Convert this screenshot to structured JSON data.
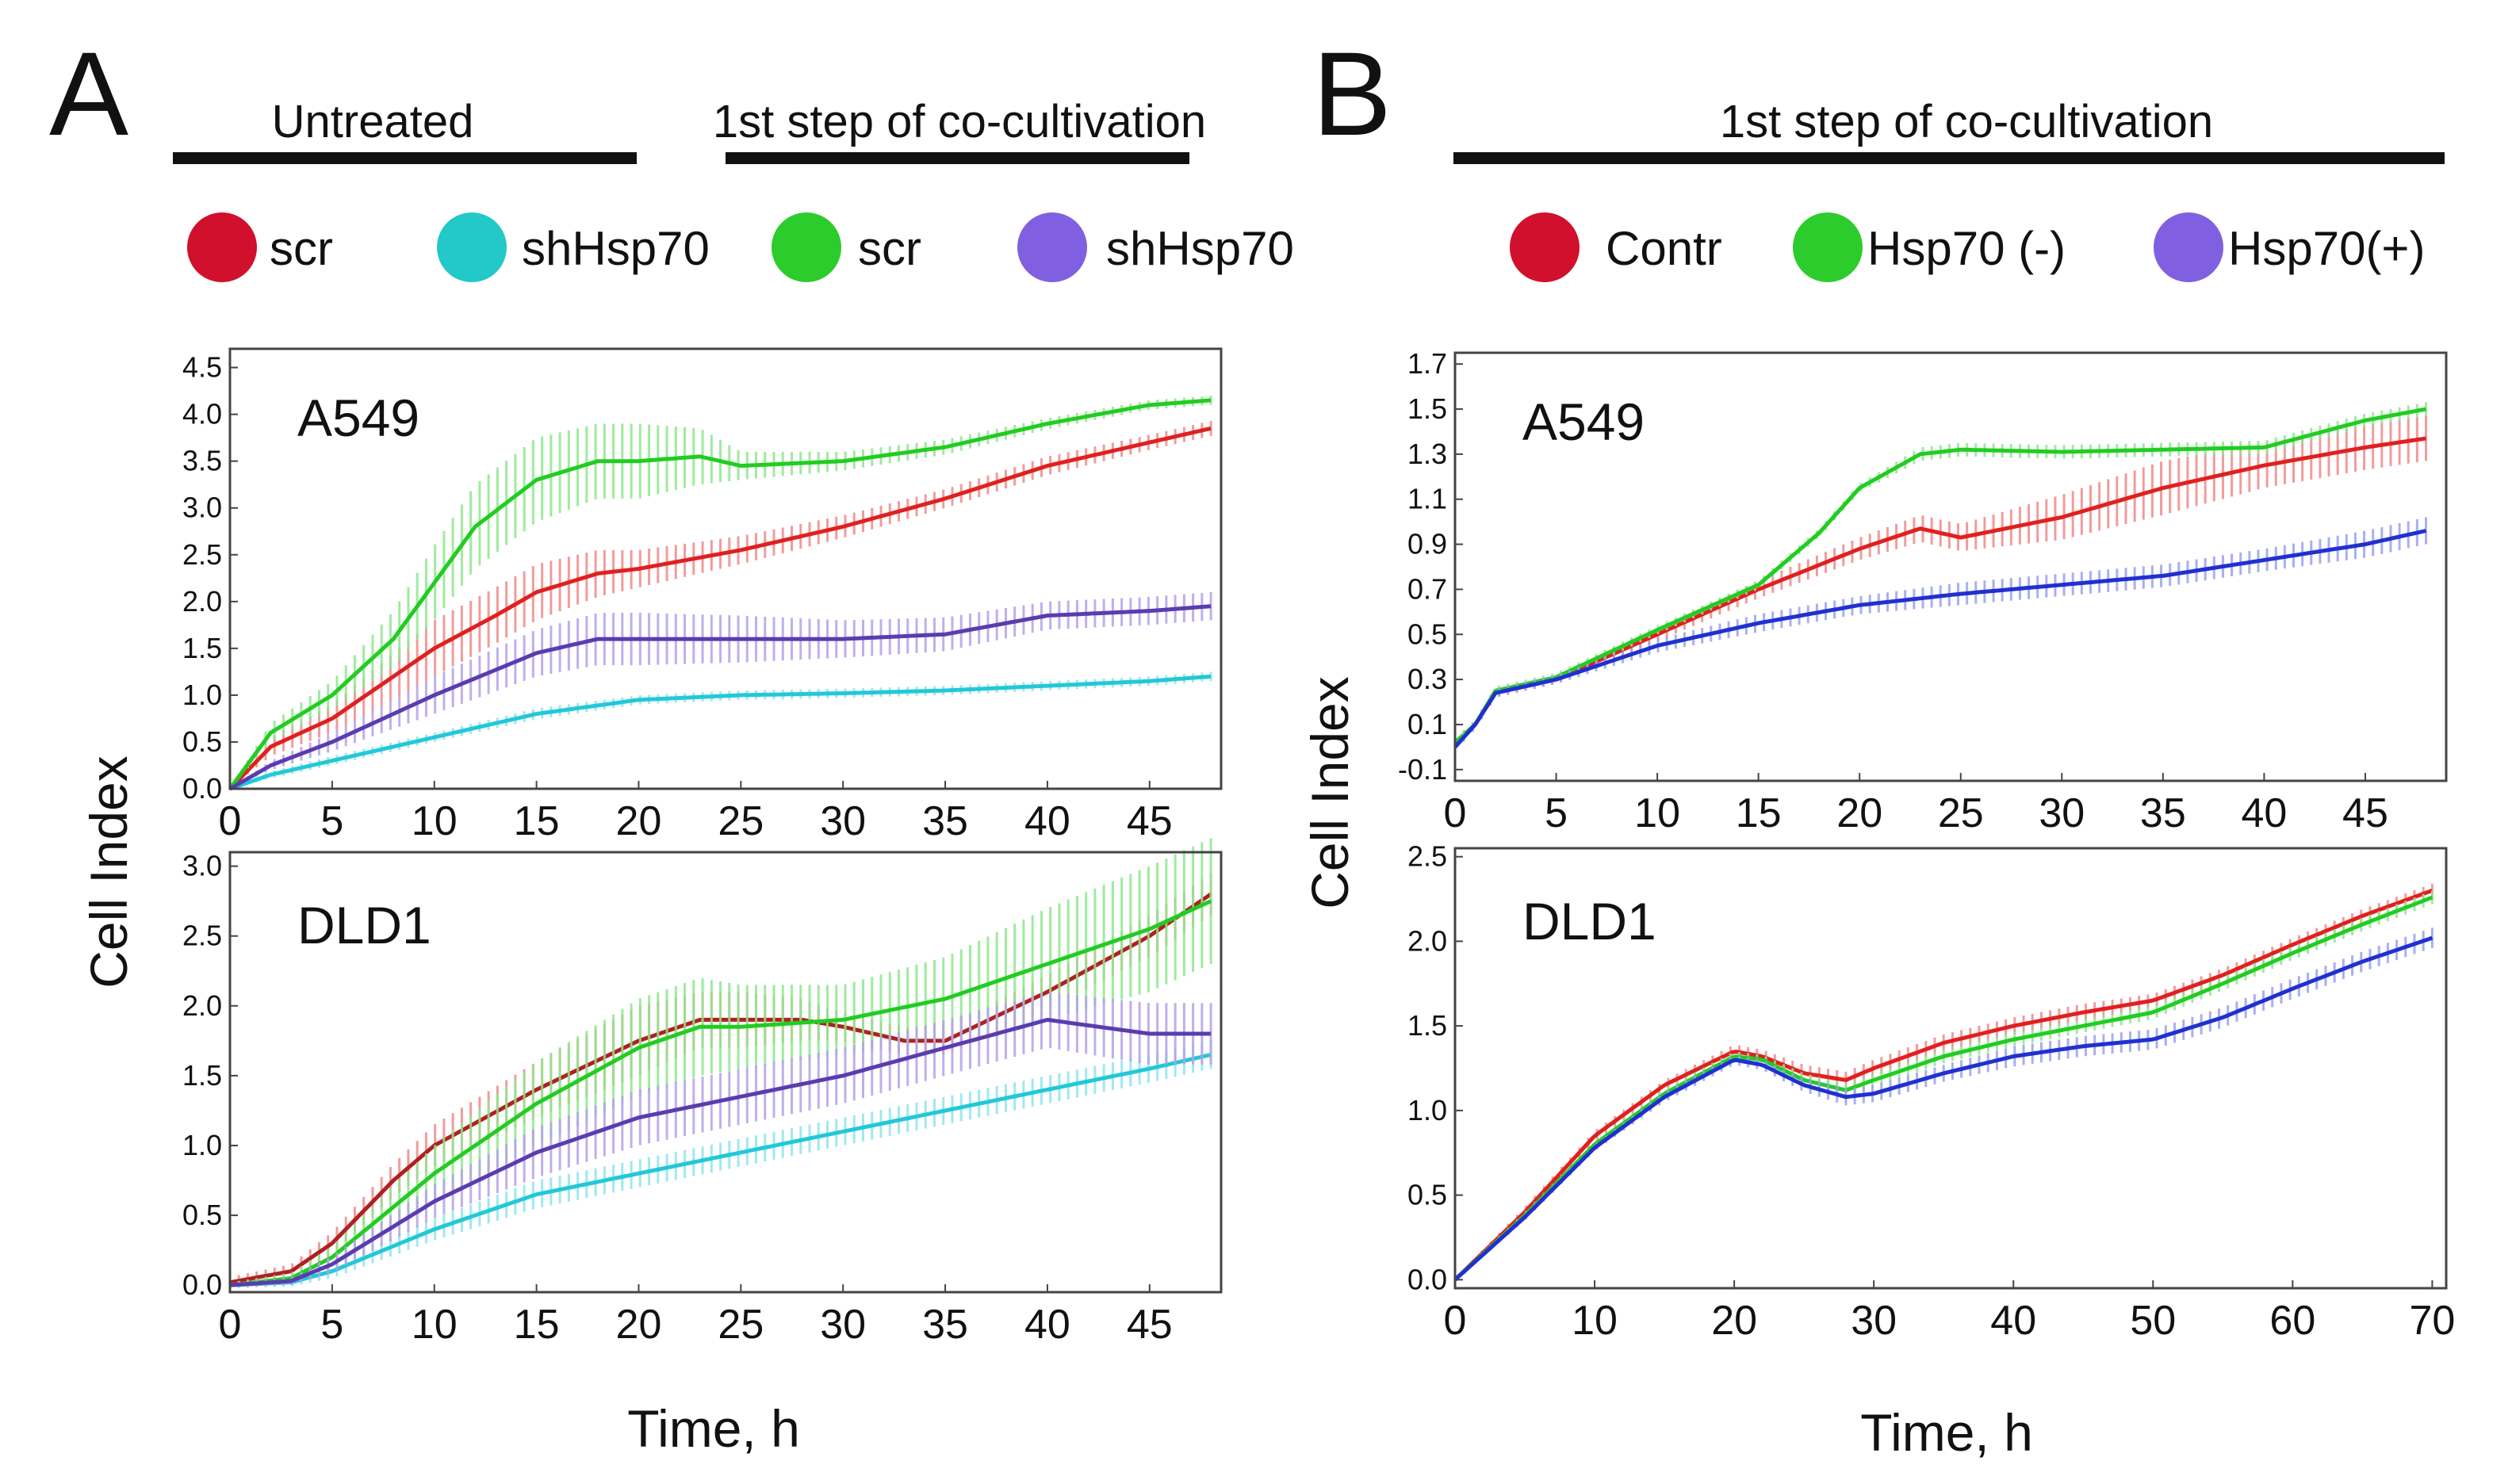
{
  "panels": [
    {
      "letter": "A",
      "headers": [
        "Untreated",
        "1st step of co-cultivation"
      ],
      "legend": [
        {
          "label": "scr",
          "color": "#d0102c"
        },
        {
          "label": "shHsp70",
          "color": "#23c8c8"
        },
        {
          "label": "scr",
          "color": "#2ccc2c"
        },
        {
          "label": "shHsp70",
          "color": "#8060e0"
        }
      ],
      "ylabel": "Cell Index",
      "xlabel": "Time, h"
    },
    {
      "letter": "B",
      "headers": [
        "1st step of co-cultivation"
      ],
      "legend": [
        {
          "label": "Contr",
          "color": "#d0102c"
        },
        {
          "label": "Hsp70 (-)",
          "color": "#2ccc2c"
        },
        {
          "label": "Hsp70(+)",
          "color": "#8060e0"
        }
      ],
      "ylabel": "Cell Index",
      "xlabel": "Time, h"
    }
  ],
  "chart_data": [
    {
      "panel": "A",
      "title": "A549",
      "type": "line",
      "xlabel": "Time, h",
      "ylabel": "Cell Index",
      "xlim": [
        0,
        48.5
      ],
      "ylim": [
        0,
        4.7
      ],
      "xticks": [
        0,
        5,
        10,
        15,
        20,
        25,
        30,
        35,
        40,
        45
      ],
      "yticks": [
        0.0,
        0.5,
        1.0,
        1.5,
        2.0,
        2.5,
        3.0,
        3.5,
        4.0,
        4.5
      ],
      "series": [
        {
          "name": "Untreated scr",
          "color": "#e02020",
          "band": "#f08a8a",
          "x": [
            0,
            2,
            5,
            8,
            10,
            13,
            15,
            18,
            20,
            25,
            30,
            35,
            40,
            45,
            48
          ],
          "y": [
            0,
            0.45,
            0.75,
            1.2,
            1.5,
            1.85,
            2.1,
            2.3,
            2.35,
            2.55,
            2.8,
            3.1,
            3.45,
            3.7,
            3.85
          ],
          "err": [
            0,
            0.1,
            0.15,
            0.25,
            0.3,
            0.3,
            0.3,
            0.25,
            0.2,
            0.15,
            0.12,
            0.1,
            0.1,
            0.08,
            0.08
          ]
        },
        {
          "name": "Untreated shHsp70",
          "color": "#22c8d8",
          "band": "#8ee6ee",
          "x": [
            0,
            2,
            5,
            10,
            15,
            20,
            25,
            30,
            35,
            40,
            45,
            48
          ],
          "y": [
            0,
            0.15,
            0.3,
            0.55,
            0.8,
            0.95,
            1.0,
            1.02,
            1.05,
            1.1,
            1.15,
            1.2
          ],
          "err": [
            0,
            0.04,
            0.05,
            0.05,
            0.06,
            0.05,
            0.05,
            0.05,
            0.05,
            0.05,
            0.05,
            0.05
          ]
        },
        {
          "name": "Co-cultivation scr",
          "color": "#22cc22",
          "band": "#8ee88e",
          "x": [
            0,
            2,
            5,
            8,
            10,
            12,
            15,
            18,
            20,
            23,
            25,
            30,
            35,
            40,
            45,
            48
          ],
          "y": [
            0,
            0.6,
            1.0,
            1.6,
            2.2,
            2.8,
            3.3,
            3.5,
            3.5,
            3.55,
            3.45,
            3.5,
            3.65,
            3.9,
            4.1,
            4.15
          ],
          "err": [
            0,
            0.1,
            0.15,
            0.3,
            0.4,
            0.45,
            0.45,
            0.4,
            0.4,
            0.3,
            0.15,
            0.1,
            0.08,
            0.06,
            0.05,
            0.05
          ]
        },
        {
          "name": "Co-cultivation shHsp70",
          "color": "#5a3cb0",
          "band": "#b4a2ea",
          "x": [
            0,
            2,
            5,
            10,
            15,
            18,
            20,
            25,
            30,
            35,
            40,
            45,
            48
          ],
          "y": [
            0,
            0.25,
            0.5,
            1.0,
            1.45,
            1.6,
            1.6,
            1.6,
            1.6,
            1.65,
            1.85,
            1.9,
            1.95
          ],
          "err": [
            0,
            0.05,
            0.1,
            0.2,
            0.25,
            0.28,
            0.28,
            0.25,
            0.2,
            0.18,
            0.15,
            0.15,
            0.15
          ]
        }
      ]
    },
    {
      "panel": "A",
      "title": "DLD1",
      "type": "line",
      "xlabel": "Time, h",
      "ylabel": "Cell Index",
      "xlim": [
        0,
        48.5
      ],
      "ylim": [
        -0.05,
        3.1
      ],
      "xticks": [
        0,
        5,
        10,
        15,
        20,
        25,
        30,
        35,
        40,
        45
      ],
      "yticks": [
        0.0,
        0.5,
        1.0,
        1.5,
        2.0,
        2.5,
        3.0
      ],
      "series": [
        {
          "name": "Untreated scr",
          "color": "#b02020",
          "band": "#f08a8a",
          "x": [
            0,
            3,
            5,
            8,
            10,
            15,
            20,
            23,
            25,
            28,
            30,
            33,
            35,
            40,
            45,
            48
          ],
          "y": [
            0.02,
            0.1,
            0.3,
            0.75,
            1.0,
            1.4,
            1.75,
            1.9,
            1.9,
            1.9,
            1.85,
            1.75,
            1.75,
            2.1,
            2.5,
            2.8
          ],
          "err": [
            0.04,
            0.05,
            0.08,
            0.12,
            0.15,
            0.2,
            0.25,
            0.2,
            0.2,
            0.15,
            0.1,
            0.1,
            0.1,
            0.12,
            0.15,
            0.15
          ]
        },
        {
          "name": "Untreated shHsp70",
          "color": "#22c8d8",
          "band": "#8ee6ee",
          "x": [
            0,
            3,
            5,
            10,
            15,
            20,
            25,
            30,
            35,
            40,
            45,
            48
          ],
          "y": [
            0,
            0.02,
            0.1,
            0.4,
            0.65,
            0.8,
            0.95,
            1.1,
            1.25,
            1.4,
            1.55,
            1.65
          ],
          "err": [
            0.02,
            0.03,
            0.05,
            0.08,
            0.1,
            0.1,
            0.1,
            0.1,
            0.1,
            0.1,
            0.1,
            0.1
          ]
        },
        {
          "name": "Co-cultivation scr",
          "color": "#22cc22",
          "band": "#8ee88e",
          "x": [
            0,
            3,
            5,
            10,
            15,
            20,
            23,
            25,
            30,
            35,
            40,
            45,
            48
          ],
          "y": [
            0,
            0.05,
            0.2,
            0.8,
            1.3,
            1.7,
            1.85,
            1.85,
            1.9,
            2.05,
            2.3,
            2.55,
            2.75
          ],
          "err": [
            0.02,
            0.04,
            0.08,
            0.2,
            0.3,
            0.35,
            0.35,
            0.3,
            0.25,
            0.3,
            0.4,
            0.45,
            0.45
          ]
        },
        {
          "name": "Co-cultivation shHsp70",
          "color": "#5a3cb0",
          "band": "#b4a2ea",
          "x": [
            0,
            3,
            5,
            10,
            15,
            20,
            25,
            30,
            35,
            40,
            45,
            48
          ],
          "y": [
            0,
            0.03,
            0.15,
            0.6,
            0.95,
            1.2,
            1.35,
            1.5,
            1.7,
            1.9,
            1.8,
            1.8
          ],
          "err": [
            0.02,
            0.03,
            0.06,
            0.12,
            0.18,
            0.2,
            0.2,
            0.2,
            0.2,
            0.2,
            0.22,
            0.22
          ]
        }
      ]
    },
    {
      "panel": "B",
      "title": "A549",
      "type": "line",
      "xlabel": "Time, h",
      "ylabel": "Cell Index",
      "xlim": [
        0,
        49
      ],
      "ylim": [
        -0.15,
        1.75
      ],
      "xticks": [
        0,
        5,
        10,
        15,
        20,
        25,
        30,
        35,
        40,
        45
      ],
      "yticks": [
        -0.1,
        0.1,
        0.3,
        0.5,
        0.7,
        0.9,
        1.1,
        1.3,
        1.5,
        1.7
      ],
      "series": [
        {
          "name": "Contr",
          "color": "#e02020",
          "band": "#f08a8a",
          "x": [
            0,
            1,
            2,
            5,
            10,
            15,
            20,
            23,
            25,
            30,
            35,
            40,
            45,
            48
          ],
          "y": [
            0.02,
            0.1,
            0.24,
            0.3,
            0.5,
            0.7,
            0.88,
            0.97,
            0.93,
            1.02,
            1.15,
            1.25,
            1.33,
            1.37
          ],
          "err": [
            0.02,
            0.02,
            0.02,
            0.02,
            0.03,
            0.04,
            0.05,
            0.06,
            0.06,
            0.1,
            0.12,
            0.1,
            0.1,
            0.1
          ]
        },
        {
          "name": "Hsp70 (-)",
          "color": "#22cc22",
          "band": "#8ee88e",
          "x": [
            0,
            1,
            2,
            5,
            10,
            15,
            18,
            20,
            23,
            25,
            30,
            35,
            40,
            45,
            48
          ],
          "y": [
            0.02,
            0.1,
            0.25,
            0.31,
            0.52,
            0.72,
            0.95,
            1.15,
            1.3,
            1.32,
            1.31,
            1.32,
            1.33,
            1.45,
            1.5
          ],
          "err": [
            0.02,
            0.02,
            0.02,
            0.02,
            0.02,
            0.02,
            0.02,
            0.02,
            0.03,
            0.03,
            0.03,
            0.03,
            0.03,
            0.03,
            0.03
          ]
        },
        {
          "name": "Hsp70(+)",
          "color": "#2030d0",
          "band": "#9aa2f0",
          "x": [
            0,
            1,
            2,
            5,
            10,
            15,
            20,
            25,
            30,
            35,
            40,
            45,
            48
          ],
          "y": [
            0.0,
            0.1,
            0.24,
            0.3,
            0.45,
            0.55,
            0.63,
            0.68,
            0.72,
            0.76,
            0.83,
            0.9,
            0.96
          ],
          "err": [
            0.02,
            0.02,
            0.02,
            0.02,
            0.03,
            0.04,
            0.04,
            0.05,
            0.05,
            0.05,
            0.05,
            0.06,
            0.06
          ]
        }
      ]
    },
    {
      "panel": "B",
      "title": "DLD1",
      "type": "line",
      "xlabel": "Time, h",
      "ylabel": "Cell Index",
      "xlim": [
        0,
        71
      ],
      "ylim": [
        -0.05,
        2.55
      ],
      "xticks": [
        0,
        10,
        20,
        30,
        40,
        50,
        60,
        70
      ],
      "yticks": [
        0.0,
        0.5,
        1.0,
        1.5,
        2.0,
        2.5
      ],
      "series": [
        {
          "name": "Contr",
          "color": "#e02020",
          "band": "#f08a8a",
          "x": [
            0,
            5,
            10,
            15,
            20,
            22,
            25,
            28,
            30,
            35,
            40,
            45,
            50,
            55,
            60,
            65,
            70
          ],
          "y": [
            0,
            0.4,
            0.85,
            1.15,
            1.35,
            1.32,
            1.22,
            1.18,
            1.25,
            1.4,
            1.5,
            1.58,
            1.65,
            1.8,
            1.98,
            2.15,
            2.3
          ],
          "err": [
            0.01,
            0.03,
            0.03,
            0.03,
            0.04,
            0.04,
            0.05,
            0.05,
            0.05,
            0.05,
            0.05,
            0.05,
            0.04,
            0.04,
            0.04,
            0.04,
            0.04
          ]
        },
        {
          "name": "Hsp70 (-)",
          "color": "#22cc22",
          "band": "#8ee88e",
          "x": [
            0,
            5,
            10,
            15,
            20,
            22,
            25,
            28,
            30,
            35,
            40,
            45,
            50,
            55,
            60,
            65,
            70
          ],
          "y": [
            0,
            0.38,
            0.8,
            1.1,
            1.32,
            1.3,
            1.18,
            1.12,
            1.18,
            1.32,
            1.42,
            1.5,
            1.58,
            1.75,
            1.93,
            2.1,
            2.26
          ],
          "err": [
            0.01,
            0.02,
            0.02,
            0.03,
            0.03,
            0.03,
            0.04,
            0.04,
            0.04,
            0.04,
            0.04,
            0.04,
            0.04,
            0.04,
            0.04,
            0.04,
            0.04
          ]
        },
        {
          "name": "Hsp70(+)",
          "color": "#2030d0",
          "band": "#9aa2f0",
          "x": [
            0,
            5,
            10,
            15,
            20,
            22,
            25,
            28,
            30,
            35,
            40,
            45,
            50,
            55,
            60,
            65,
            70
          ],
          "y": [
            0,
            0.37,
            0.78,
            1.08,
            1.3,
            1.27,
            1.15,
            1.08,
            1.1,
            1.22,
            1.32,
            1.38,
            1.42,
            1.55,
            1.72,
            1.88,
            2.02
          ],
          "err": [
            0.01,
            0.02,
            0.02,
            0.03,
            0.03,
            0.03,
            0.04,
            0.05,
            0.05,
            0.05,
            0.06,
            0.06,
            0.06,
            0.06,
            0.06,
            0.06,
            0.06
          ]
        }
      ]
    }
  ]
}
